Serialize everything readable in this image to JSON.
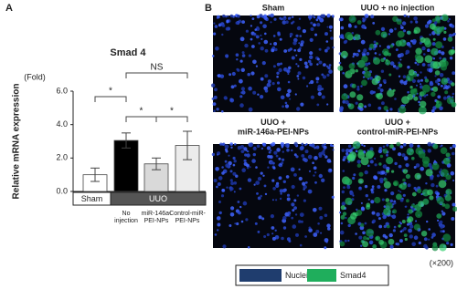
{
  "chart_data": {
    "type": "bar",
    "title": "Smad 4",
    "y_label": "Relative mRNA expression",
    "y_unit": "(Fold)",
    "categories": [
      null,
      "No\ninjection",
      "miR-146a-\nPEI-NPs",
      "Control-miR-\nPEI-NPs"
    ],
    "values": [
      1.0,
      3.05,
      1.65,
      2.75
    ],
    "errors": [
      0.4,
      0.45,
      0.35,
      0.85
    ],
    "colors": [
      "#ffffff",
      "#000000",
      "#d9d9d9",
      "#ececec"
    ],
    "ylim": [
      0,
      6
    ],
    "yticks": [
      {
        "value": 0,
        "label": "0.0"
      },
      {
        "value": 2,
        "label": "2.0"
      },
      {
        "value": 4,
        "label": "4.0"
      },
      {
        "value": 6,
        "label": "6.0"
      }
    ],
    "groups": [
      {
        "label": "Sham",
        "from": 0,
        "to": 0,
        "color": "#ffffff"
      },
      {
        "label": "UUO",
        "from": 1,
        "to": 3,
        "color": "#555555"
      }
    ],
    "annotations": [
      {
        "text": "NS",
        "from": 1,
        "to": 3
      },
      {
        "text": "*",
        "from": 0,
        "to": 1
      },
      {
        "text": "*",
        "from": 1,
        "to": 2
      },
      {
        "text": "*",
        "from": 2,
        "to": 3
      }
    ]
  },
  "panel_a_label": "A",
  "panel_b": {
    "label": "B",
    "images": [
      {
        "title": "Sham"
      },
      {
        "title": "UUO + no injection"
      },
      {
        "title": "UUO +\nmiR-146a-PEI-NPs"
      },
      {
        "title": "UUO +\ncontrol-miR-PEI-NPs"
      }
    ],
    "magnification": "(×200)",
    "legend": [
      {
        "label": "Nuclei (DAPI)",
        "color": "#1f3d6e"
      },
      {
        "label": "Smad4",
        "color": "#1fae5c"
      }
    ]
  }
}
